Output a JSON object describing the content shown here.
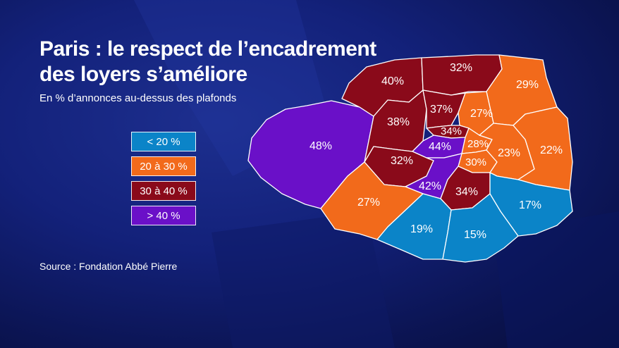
{
  "title": {
    "line1": "Paris : le respect de l’encadrement",
    "line2": "des loyers s’améliore"
  },
  "subtitle": "En % d’annonces au-dessus des plafonds",
  "legend": [
    {
      "label": "< 20 %",
      "color": "#0b84c8"
    },
    {
      "label": "20 à 30 %",
      "color": "#f26a1b"
    },
    {
      "label": "30 à 40 %",
      "color": "#8a0a1a"
    },
    {
      "label": "> 40 %",
      "color": "#6a10c8"
    }
  ],
  "source": "Source : Fondation Abbé Pierre",
  "map_data": {
    "type": "choropleth",
    "regions": [
      {
        "id": "16e",
        "value": 48,
        "label": "48%",
        "category": "> 40 %"
      },
      {
        "id": "17e",
        "value": 40,
        "label": "40%",
        "category": "30 à 40 %"
      },
      {
        "id": "18e",
        "value": 32,
        "label": "32%",
        "category": "30 à 40 %"
      },
      {
        "id": "19e",
        "value": 29,
        "label": "29%",
        "category": "20 à 30 %"
      },
      {
        "id": "8e",
        "value": 38,
        "label": "38%",
        "category": "30 à 40 %"
      },
      {
        "id": "9e",
        "value": 37,
        "label": "37%",
        "category": "30 à 40 %"
      },
      {
        "id": "10e",
        "value": 27,
        "label": "27%",
        "category": "20 à 30 %"
      },
      {
        "id": "2e",
        "value": 34,
        "label": "34%",
        "category": "30 à 40 %"
      },
      {
        "id": "1er",
        "value": 44,
        "label": "44%",
        "category": "> 40 %"
      },
      {
        "id": "3e",
        "value": 28,
        "label": "28%",
        "category": "20 à 30 %"
      },
      {
        "id": "4e",
        "value": 30,
        "label": "30%",
        "category": "20 à 30 %"
      },
      {
        "id": "11e",
        "value": 23,
        "label": "23%",
        "category": "20 à 30 %"
      },
      {
        "id": "20e",
        "value": 22,
        "label": "22%",
        "category": "20 à 30 %"
      },
      {
        "id": "7e",
        "value": 32,
        "label": "32%",
        "category": "30 à 40 %"
      },
      {
        "id": "6e",
        "value": 42,
        "label": "42%",
        "category": "> 40 %"
      },
      {
        "id": "5e",
        "value": 34,
        "label": "34%",
        "category": "30 à 40 %"
      },
      {
        "id": "15e",
        "value": 27,
        "label": "27%",
        "category": "20 à 30 %"
      },
      {
        "id": "14e",
        "value": 19,
        "label": "19%",
        "category": "< 20 %"
      },
      {
        "id": "13e",
        "value": 15,
        "label": "15%",
        "category": "< 20 %"
      },
      {
        "id": "12e",
        "value": 17,
        "label": "17%",
        "category": "< 20 %"
      }
    ]
  }
}
